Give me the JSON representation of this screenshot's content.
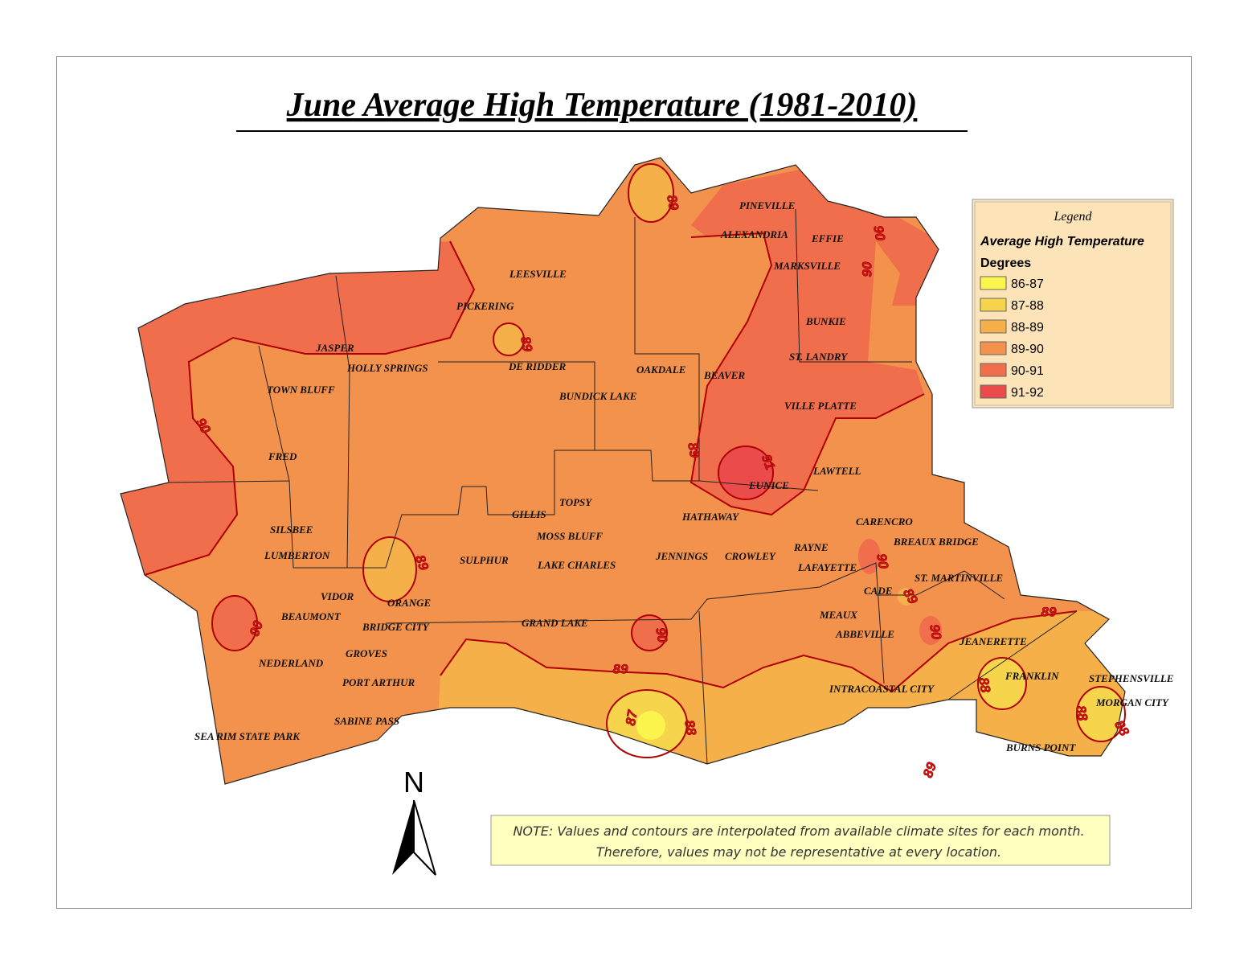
{
  "title": "June Average High Temperature (1981-2010)",
  "legend": {
    "heading": "Legend",
    "subtitle": "Average High Temperature",
    "unit": "Degrees",
    "items": [
      {
        "label": "86-87",
        "color": "#fbf44c"
      },
      {
        "label": "87-88",
        "color": "#f6d54c"
      },
      {
        "label": "88-89",
        "color": "#f5b04a"
      },
      {
        "label": "89-90",
        "color": "#f3924d"
      },
      {
        "label": "90-91",
        "color": "#f06e4b"
      },
      {
        "label": "91-92",
        "color": "#ec4b4b"
      }
    ]
  },
  "places": [
    "PINEVILLE",
    "ALEXANDRIA",
    "EFFIE",
    "MARKSVILLE",
    "LEESVILLE",
    "PICKERING",
    "BUNKIE",
    "JASPER",
    "HOLLY SPRINGS",
    "DE RIDDER",
    "ST. LANDRY",
    "OAKDALE",
    "BEAVER",
    "TOWN BLUFF",
    "BUNDICK LAKE",
    "VILLE PLATTE",
    "FRED",
    "LAWTELL",
    "EUNICE",
    "TOPSY",
    "GILLIS",
    "HATHAWAY",
    "CARENCRO",
    "SILSBEE",
    "MOSS BLUFF",
    "BREAUX BRIDGE",
    "RAYNE",
    "LUMBERTON",
    "SULPHUR",
    "JENNINGS",
    "CROWLEY",
    "LAKE CHARLES",
    "LAFAYETTE",
    "ST. MARTINVILLE",
    "VIDOR",
    "CADE",
    "ORANGE",
    "BEAUMONT",
    "MEAUX",
    "BRIDGE CITY",
    "GRAND LAKE",
    "ABBEVILLE",
    "JEANERETTE",
    "GROVES",
    "NEDERLAND",
    "FRANKLIN",
    "STEPHENSVILLE",
    "PORT ARTHUR",
    "INTRACOASTAL CITY",
    "MORGAN CITY",
    "SABINE PASS",
    "SEA RIM STATE PARK",
    "BURNS POINT"
  ],
  "contour_labels": [
    89,
    90,
    90,
    89,
    90,
    89,
    89,
    91,
    90,
    89,
    90,
    90,
    90,
    89,
    89,
    88,
    87,
    88,
    88,
    88,
    89
  ],
  "north": "N",
  "note": [
    "NOTE: Values and contours are interpolated from available climate sites for each month.",
    "Therefore, values may not be representative at every location."
  ]
}
